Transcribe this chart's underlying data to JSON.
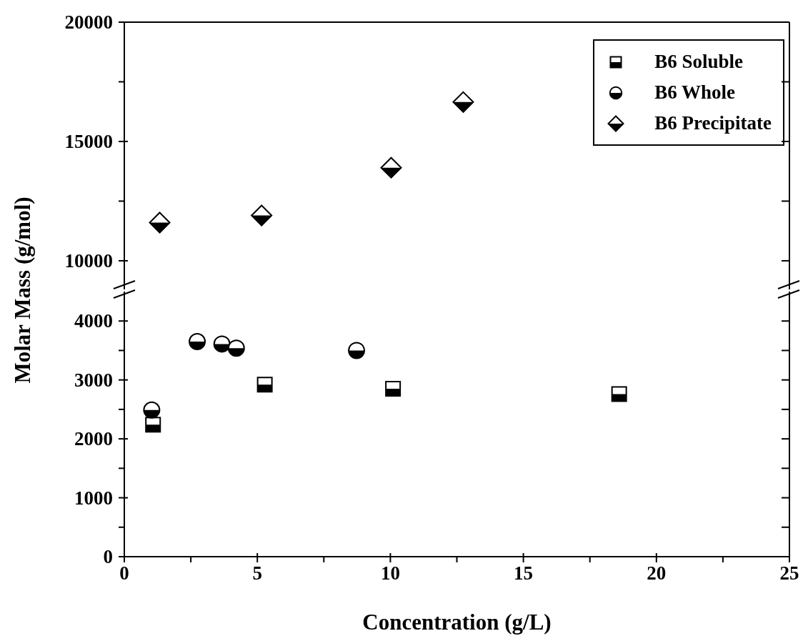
{
  "chart_data": [
    {
      "type": "scatter",
      "ylabel": "Molar Mass (g/mol)",
      "xlim": [
        0,
        25
      ],
      "ylim": [
        8800,
        20000
      ],
      "yticks": [
        10000,
        {
          "value": 12500,
          "label": null
        },
        15000,
        {
          "value": 17500,
          "label": null
        },
        20000
      ],
      "tick_labels": "y",
      "legend": "top right",
      "grid": false,
      "series": [
        {
          "name": "B6 Precipitate",
          "color": "#000000",
          "marker": "diamond",
          "x": [
            1.33,
            5.16,
            10.03,
            12.74
          ],
          "values": [
            11600,
            11900,
            13900,
            16650
          ]
        }
      ]
    },
    {
      "type": "scatter",
      "xlabel": "Concentration (g/L)",
      "xlim": [
        0,
        25
      ],
      "xticks": [
        0,
        {
          "value": 2.5,
          "label": null
        },
        5,
        {
          "value": 7.5,
          "label": null
        },
        10,
        {
          "value": 12.5,
          "label": null
        },
        15,
        {
          "value": 17.5,
          "label": null
        },
        20,
        {
          "value": 22.5,
          "label": null
        },
        25
      ],
      "ylim": [
        0,
        4500
      ],
      "yticks": [
        0,
        {
          "value": 500,
          "label": null
        },
        1000,
        {
          "value": 1500,
          "label": null
        },
        2000,
        {
          "value": 2500,
          "label": null
        },
        3000,
        {
          "value": 3500,
          "label": null
        },
        4000
      ],
      "grid": false,
      "series": [
        {
          "name": "B6 Soluble",
          "color": "#000000",
          "marker": "square",
          "x": [
            1.08,
            5.28,
            10.1,
            18.6
          ],
          "values": [
            2240,
            2920,
            2850,
            2760
          ]
        },
        {
          "name": "B6 Whole",
          "color": "#000000",
          "marker": "circle",
          "x": [
            1.03,
            2.74,
            3.67,
            4.21,
            8.73
          ],
          "values": [
            2490,
            3650,
            3610,
            3540,
            3500
          ]
        }
      ]
    }
  ]
}
